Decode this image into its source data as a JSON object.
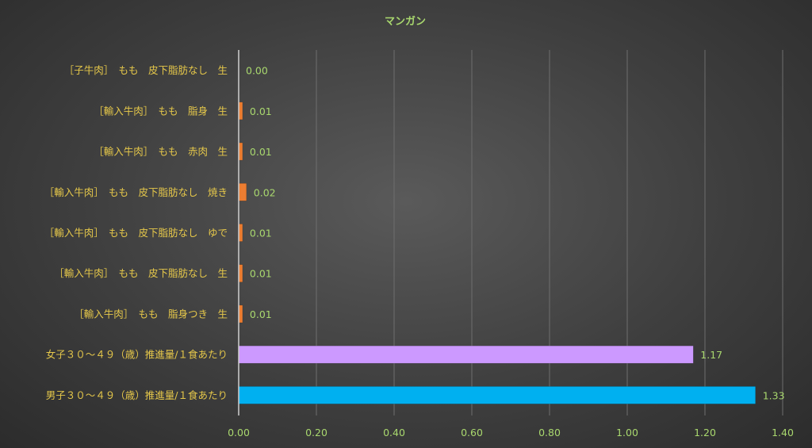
{
  "chart_data": {
    "type": "bar",
    "orientation": "horizontal",
    "title": "マンガン",
    "categories": [
      "［子牛肉］　もも　皮下脂肪なし　生",
      "［輸入牛肉］　もも　脂身　生",
      "［輸入牛肉］　もも　赤肉　生",
      "［輸入牛肉］　もも　皮下脂肪なし　焼き",
      "［輸入牛肉］　もも　皮下脂肪なし　ゆで",
      "［輸入牛肉］　もも　皮下脂肪なし　生",
      "［輸入牛肉］　もも　脂身つき　生",
      "女子３０～４９（歳）推進量/１食あたり",
      "男子３０～４９（歳）推進量/１食あたり"
    ],
    "values": [
      0.0,
      0.01,
      0.01,
      0.02,
      0.01,
      0.01,
      0.01,
      1.17,
      1.33
    ],
    "data_labels": [
      "0.00",
      "0.01",
      "0.01",
      "0.02",
      "0.01",
      "0.01",
      "0.01",
      "1.17",
      "1.33"
    ],
    "bar_colors": [
      "#ed7d31",
      "#ed7d31",
      "#ed7d31",
      "#ed7d31",
      "#ed7d31",
      "#ed7d31",
      "#ed7d31",
      "#cc99ff",
      "#00b0f0"
    ],
    "xlim": [
      0,
      1.4
    ],
    "x_ticks": [
      "0.00",
      "0.20",
      "0.40",
      "0.60",
      "0.80",
      "1.00",
      "1.20",
      "1.40"
    ],
    "x_tick_values": [
      0,
      0.2,
      0.4,
      0.6,
      0.8,
      1.0,
      1.2,
      1.4
    ],
    "grid": true,
    "legend": "none",
    "xlabel": "",
    "ylabel": ""
  }
}
